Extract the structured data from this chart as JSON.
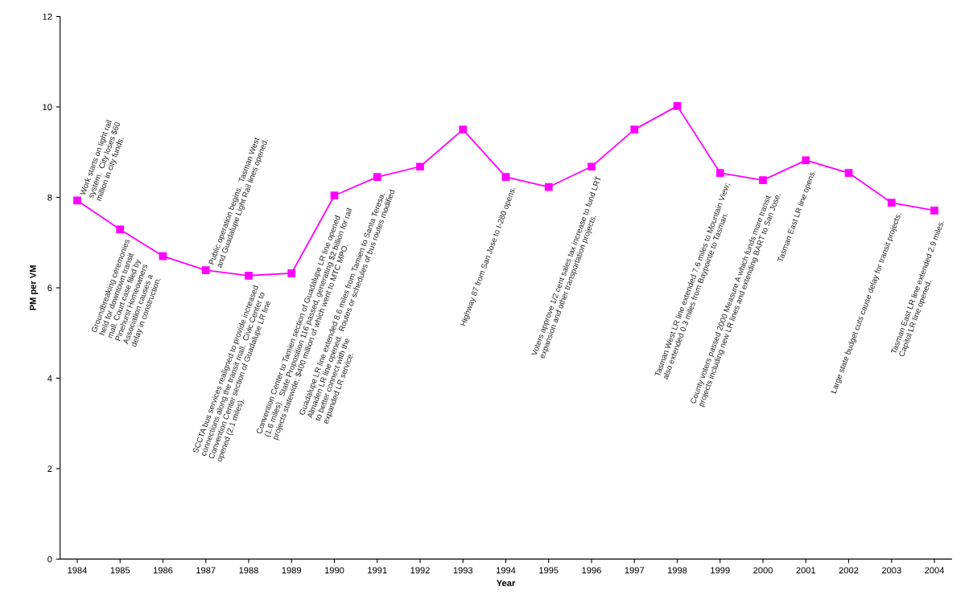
{
  "chart_data": {
    "type": "line",
    "xlabel": "Year",
    "ylabel": "PM per VM",
    "categories": [
      "1984",
      "1985",
      "1986",
      "1987",
      "1988",
      "1989",
      "1990",
      "1991",
      "1992",
      "1993",
      "1994",
      "1995",
      "1996",
      "1997",
      "1998",
      "1999",
      "2000",
      "2001",
      "2002",
      "2003",
      "2004"
    ],
    "series": [
      {
        "color": "#ff00ff",
        "values": [
          7.93,
          7.29,
          6.7,
          6.39,
          6.27,
          6.32,
          8.04,
          8.45,
          8.68,
          9.5,
          8.45,
          8.23,
          8.68,
          9.5,
          10.02,
          8.54,
          8.38,
          8.82,
          8.54,
          7.88,
          7.71
        ]
      }
    ],
    "ylim": [
      0,
      12
    ],
    "yticks": [
      0,
      2,
      4,
      6,
      8,
      10,
      12
    ],
    "grid": false,
    "legend": false,
    "marker": "square",
    "line_style": "solid",
    "annotations": [
      {
        "text": "Work starts on light rail\nsystem.  City loses $60\nmillion in city funds.",
        "x": "1984",
        "y": 7.93
      },
      {
        "text": "Groundbreaking ceremonies\nheld for downtown transit\nmall. Court case filed by\nPinehurst Homeowners\nAssociation causes a\ndelay in construction.",
        "x": "1985",
        "y": 7.29
      },
      {
        "text": "Public operation begins.  Tasman West\nand Guadalupe Light Rail lines opened.",
        "x": "1987",
        "y": 6.39
      },
      {
        "text": "SCCTA bus services realigned to provide increased\nconnections along the transit mall.  Civic Center to\nConvention Center section of Guadalupe LR line\nopened (2.1 miles).",
        "x": "1988",
        "y": 6.27
      },
      {
        "text": "Convention Center to Tamien section of Guadalupe LR line opened\n(1.6 miles).  State Proposition 116 passed, generating $2 billion for rail\nprojects statewide; $400 million of which went to MTC MPO.",
        "x": "1990",
        "y": 8.04
      },
      {
        "text": "Guadalupe LR line extended 8.6 miles from Tamien to Santa Teresa.\nAlmaden LR line opened.  Routes or schedules of bus routes modified\nto better connect with the\nexpanded LR service.",
        "x": "1991",
        "y": 8.45
      },
      {
        "text": "Highway 87 from San Jose to I-280 opens.",
        "x": "1994",
        "y": 8.45
      },
      {
        "text": "Voters approve 1/2 cent sales tax increase to fund LRT\nexpansion and other transportation projects.",
        "x": "1996",
        "y": 8.68
      },
      {
        "text": "Tasman West LR line extended 7.6 miles to Mountain View;\nalso extended 0.3 miles from Baypointe to Tasman.",
        "x": "1999",
        "y": 8.54
      },
      {
        "text": "County voters passed 2000 Measure A which funds more transit\nprojects including new LR lines and extending BART to San Jose.",
        "x": "2000",
        "y": 8.38
      },
      {
        "text": "Tasman East LR line opens.",
        "x": "2001",
        "y": 8.82
      },
      {
        "text": "Large state budget cuts cause delay for transit projects.",
        "x": "2003",
        "y": 7.88
      },
      {
        "text": "Tasman East LR line extended 2.9 miles.\nCapitol LR line opened.",
        "x": "2004",
        "y": 7.71
      }
    ]
  }
}
